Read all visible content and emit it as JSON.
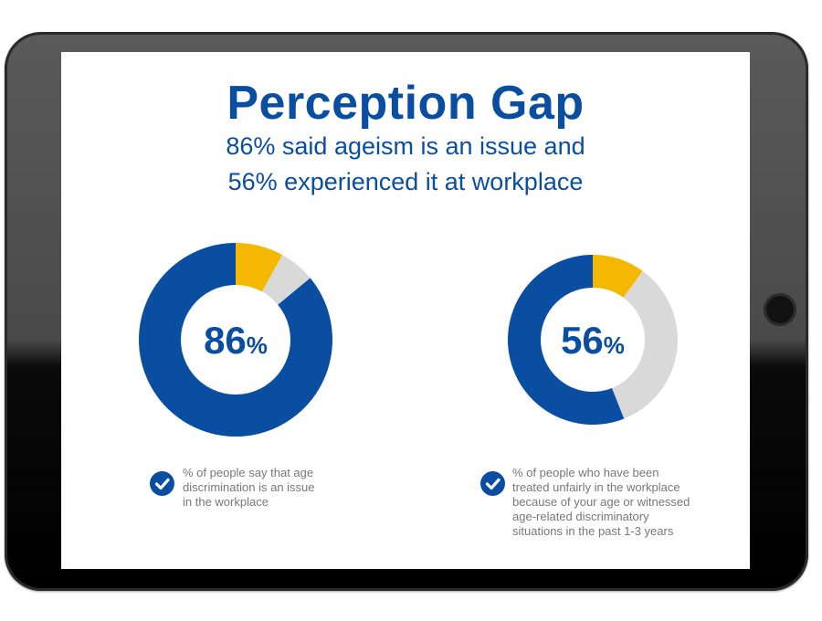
{
  "header": {
    "title": "Perception Gap",
    "subtitle_line1": "86% said ageism is an issue and",
    "subtitle_line2": "56% experienced it at workplace"
  },
  "colors": {
    "blue": "#0a4ea2",
    "yellow": "#f5b800",
    "gray": "#d9d9d9",
    "note": "#777777"
  },
  "chart_data": [
    {
      "type": "pie",
      "style": "donut",
      "center_label": {
        "number": "86",
        "unit": "%"
      },
      "slices": [
        {
          "value": 86,
          "color": "#0a4ea2"
        },
        {
          "value": 8,
          "color": "#f5b800"
        },
        {
          "value": 6,
          "color": "#d9d9d9"
        }
      ],
      "caption": "% of people say that age\ndiscrimination is an issue\nin the workplace"
    },
    {
      "type": "pie",
      "style": "donut",
      "center_label": {
        "number": "56",
        "unit": "%"
      },
      "slices": [
        {
          "value": 56,
          "color": "#0a4ea2"
        },
        {
          "value": 10,
          "color": "#f5b800"
        },
        {
          "value": 34,
          "color": "#d9d9d9"
        }
      ],
      "caption": "% of people who have been\ntreated unfairly in the workplace\nbecause of your age or witnessed\nage-related discriminatory\nsituations in the past 1-3 years"
    }
  ]
}
